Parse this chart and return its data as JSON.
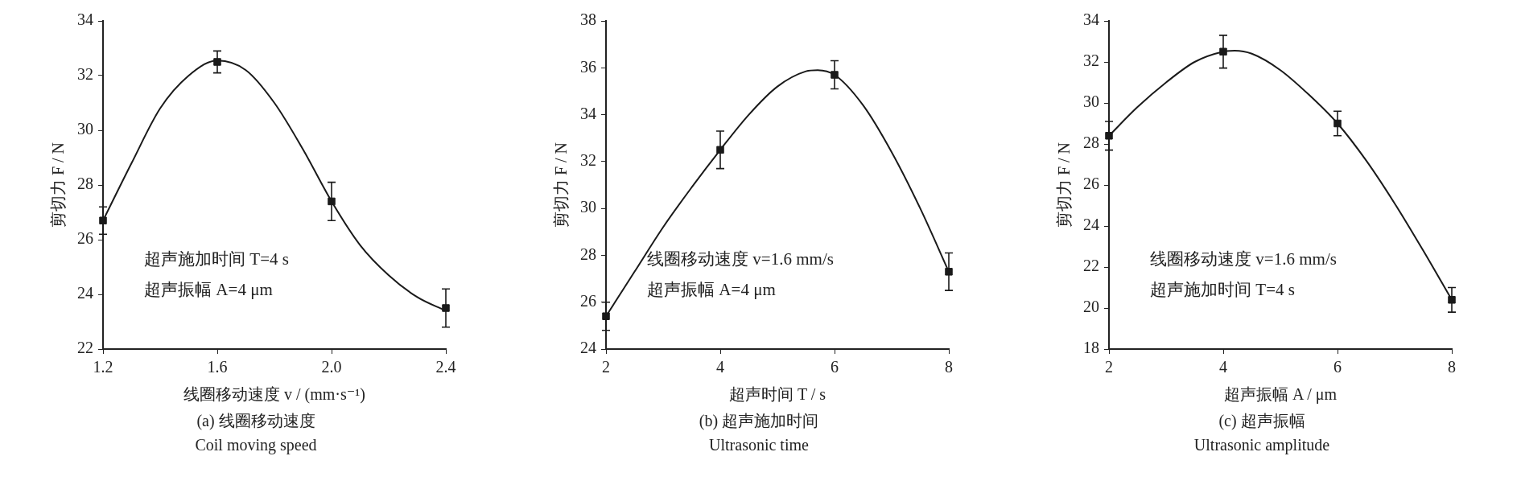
{
  "chart_data": [
    {
      "type": "scatter",
      "xlabel": "线圈移动速度 v / (mm·s⁻¹)",
      "ylabel": "剪切力 F / N",
      "marker": "square",
      "annotations": [
        "超声施加时间 T=4 s",
        "超声振幅 A=4 μm",
        "(a) 线圈移动速度",
        "Coil moving speed"
      ],
      "xlim": [
        1.2,
        2.4
      ],
      "xticks": [
        1.2,
        1.6,
        {
          "value": 2,
          "label": "2.0"
        },
        2.4
      ],
      "ylim": [
        22,
        34
      ],
      "yticks": [
        22,
        24,
        26,
        28,
        30,
        32,
        34
      ],
      "series": [
        {
          "color": "#1a1a1a",
          "x": [
            1.2,
            1.6,
            2.0,
            2.4
          ],
          "values": [
            26.7,
            32.5,
            27.4,
            23.5
          ],
          "errors": [
            0.5,
            0.4,
            0.7,
            0.7
          ]
        },
        {
          "type": "line",
          "color": "#1a1a1a",
          "marker": "none",
          "x": [
            1.2,
            1.3,
            1.4,
            1.5,
            1.6,
            1.7,
            1.8,
            1.9,
            2.0,
            2.1,
            2.2,
            2.3,
            2.4
          ],
          "values": [
            26.7,
            28.8,
            30.8,
            32.0,
            32.55,
            32.2,
            31.0,
            29.3,
            27.4,
            25.8,
            24.7,
            23.9,
            23.4
          ]
        }
      ]
    },
    {
      "type": "scatter",
      "xlabel": "超声时间 T / s",
      "ylabel": "剪切力 F / N",
      "marker": "square",
      "annotations": [
        "线圈移动速度 v=1.6 mm/s",
        "超声振幅 A=4 μm",
        "(b) 超声施加时间",
        "Ultrasonic time"
      ],
      "xlim": [
        2,
        8
      ],
      "xticks": [
        2,
        4,
        6,
        8
      ],
      "ylim": [
        24,
        38
      ],
      "yticks": [
        24,
        26,
        28,
        30,
        32,
        34,
        36,
        38
      ],
      "series": [
        {
          "color": "#1a1a1a",
          "x": [
            2,
            4,
            6,
            8
          ],
          "values": [
            25.4,
            32.5,
            35.7,
            27.3
          ],
          "errors": [
            0.6,
            0.8,
            0.6,
            0.8
          ]
        },
        {
          "type": "line",
          "color": "#1a1a1a",
          "marker": "none",
          "x": [
            2,
            2.5,
            3,
            3.5,
            4,
            4.5,
            5,
            5.5,
            5.7,
            6,
            6.5,
            7,
            7.5,
            8
          ],
          "values": [
            25.4,
            27.3,
            29.2,
            30.9,
            32.5,
            34.0,
            35.2,
            35.85,
            35.9,
            35.7,
            34.4,
            32.4,
            30.0,
            27.3
          ]
        }
      ]
    },
    {
      "type": "scatter",
      "xlabel": "超声振幅 A / μm",
      "ylabel": "剪切力 F / N",
      "marker": "square",
      "annotations": [
        "线圈移动速度 v=1.6 mm/s",
        "超声施加时间 T=4 s",
        "(c) 超声振幅",
        "Ultrasonic amplitude"
      ],
      "xlim": [
        2,
        8
      ],
      "xticks": [
        2,
        4,
        6,
        8
      ],
      "ylim": [
        18,
        34
      ],
      "yticks": [
        18,
        20,
        22,
        24,
        26,
        28,
        30,
        32,
        34
      ],
      "series": [
        {
          "color": "#1a1a1a",
          "x": [
            2,
            4,
            6,
            8
          ],
          "values": [
            28.4,
            32.5,
            29.0,
            20.4
          ],
          "errors": [
            0.7,
            0.8,
            0.6,
            0.6
          ]
        },
        {
          "type": "line",
          "color": "#1a1a1a",
          "marker": "none",
          "x": [
            2,
            2.5,
            3,
            3.5,
            4,
            4.2,
            4.5,
            5,
            5.5,
            6,
            6.5,
            7,
            7.5,
            8
          ],
          "values": [
            28.4,
            29.8,
            31.0,
            32.0,
            32.5,
            32.55,
            32.4,
            31.6,
            30.4,
            29.0,
            27.2,
            25.1,
            22.8,
            20.4
          ]
        }
      ]
    }
  ]
}
